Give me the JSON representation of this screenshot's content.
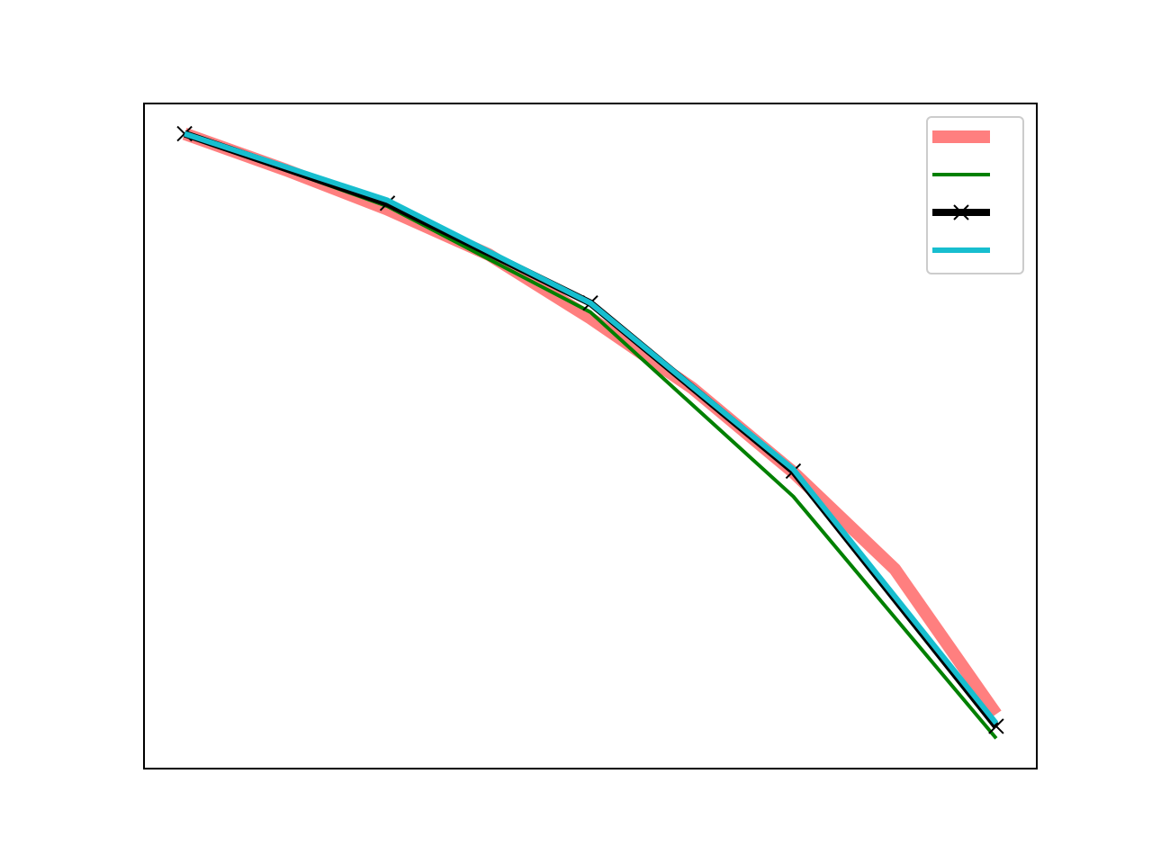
{
  "chart_data": {
    "type": "line",
    "title": "",
    "xlabel": "",
    "ylabel": "",
    "xlim": [
      -0.2,
      4.2
    ],
    "ylim": [
      -1.05,
      0.05
    ],
    "grid": false,
    "legend": "top-right",
    "series": [
      {
        "color": "#ff7f7f",
        "style": "thick-faded",
        "x": [
          0,
          0.5,
          1,
          1.5,
          2,
          2.5,
          3,
          3.5,
          4
        ],
        "y": [
          0.0,
          -0.06,
          -0.125,
          -0.2,
          -0.305,
          -0.42,
          -0.56,
          -0.72,
          -0.96
        ]
      },
      {
        "color": "#008000",
        "style": "thin",
        "x": [
          0,
          1,
          2,
          3,
          4
        ],
        "y": [
          0.0,
          -0.12,
          -0.295,
          -0.6,
          -1.0
        ]
      },
      {
        "color": "#000000",
        "style": "thick-x-markers",
        "x": [
          0,
          1,
          2,
          3,
          4
        ],
        "y": [
          0.0,
          -0.115,
          -0.28,
          -0.558,
          -0.98
        ]
      },
      {
        "color": "#17becf",
        "style": "medium",
        "x": [
          0,
          1,
          2,
          3,
          4
        ],
        "y": [
          0.0,
          -0.11,
          -0.28,
          -0.555,
          -0.975
        ]
      }
    ]
  }
}
